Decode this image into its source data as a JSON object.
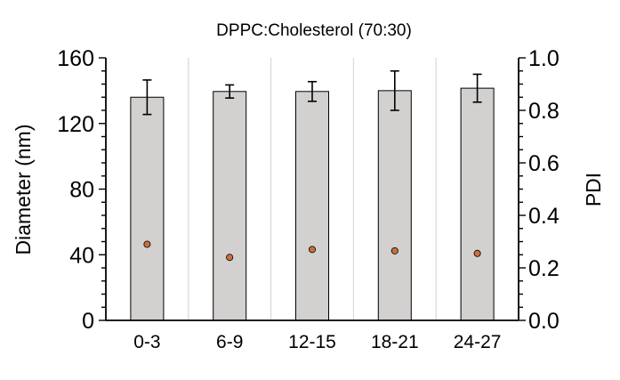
{
  "chart_data": {
    "type": "bar",
    "title": "DPPC:Cholesterol (70:30)",
    "categories": [
      "0-3",
      "6-9",
      "12-15",
      "18-21",
      "24-27"
    ],
    "series": [
      {
        "axis": "left",
        "kind": "bar",
        "values": [
          136,
          139.5,
          139.5,
          140,
          141.5
        ],
        "errors": [
          10.5,
          4,
          6,
          12,
          8.5
        ],
        "color": "#d3d0d0"
      },
      {
        "axis": "right",
        "kind": "scatter",
        "values": [
          0.29,
          0.24,
          0.27,
          0.265,
          0.255
        ],
        "color": "#c8703a"
      }
    ],
    "ylabel": "Diameter (nm)",
    "y2label": "PDI",
    "ylim": [
      0,
      160
    ],
    "y2lim": [
      0,
      1.0
    ],
    "yticks": [
      "0",
      "40",
      "80",
      "120",
      "160"
    ],
    "y2ticks": [
      "0.0",
      "0.2",
      "0.4",
      "0.6",
      "0.8",
      "1.0"
    ],
    "grid": "vertical",
    "legend": "none"
  }
}
